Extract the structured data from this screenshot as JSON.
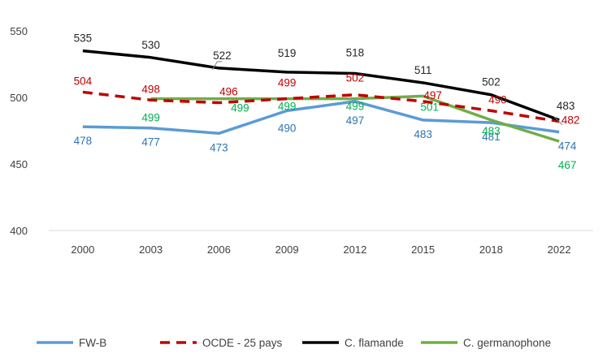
{
  "chart_data": {
    "type": "line",
    "categories": [
      "2000",
      "2003",
      "2006",
      "2009",
      "2012",
      "2015",
      "2018",
      "2022"
    ],
    "ylim": [
      400,
      550
    ],
    "yticks": [
      400,
      450,
      500,
      550
    ],
    "grid": "horizontal baseline only",
    "legend_placement": "bottom",
    "series": [
      {
        "name": "FW-B",
        "color": "#5b9bd5",
        "label_color": "#2e75b6",
        "dash": "solid",
        "values": [
          478,
          477,
          473,
          490,
          497,
          483,
          481,
          474
        ]
      },
      {
        "name": "OCDE - 25 pays",
        "color": "#c00000",
        "label_color": "#c00000",
        "dash": "dashed",
        "values": [
          504,
          498,
          496,
          499,
          502,
          497,
          490,
          482
        ]
      },
      {
        "name": "C. flamande",
        "color": "#000000",
        "label_color": "#262626",
        "dash": "solid",
        "values": [
          535,
          530,
          522,
          519,
          518,
          511,
          502,
          483
        ]
      },
      {
        "name": "C. germanophone",
        "color": "#70ad47",
        "label_color": "#00b050",
        "dash": "solid",
        "values": [
          null,
          499,
          499,
          499,
          499,
          501,
          483,
          467
        ]
      }
    ]
  }
}
